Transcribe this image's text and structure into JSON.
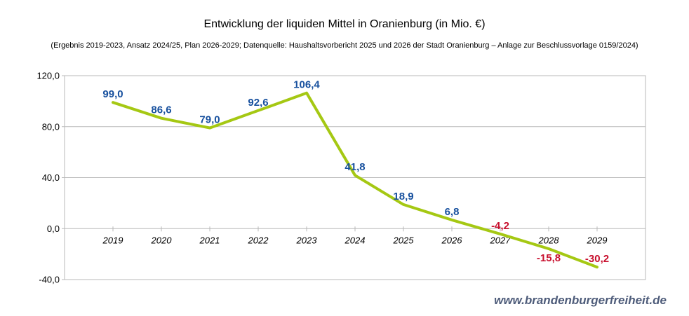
{
  "header": {
    "title": "Entwicklung der liquiden Mittel in Oranienburg (in Mio. €)",
    "subtitle": "(Ergebnis 2019-2023, Ansatz 2024/25, Plan 2026-2029; Datenquelle: Haushaltsvorbericht 2025 und 2026 der Stadt Oranienburg – Anlage zur Beschlussvorlage 0159/2024)"
  },
  "watermark": {
    "text": "www.brandenburgerfreiheit.de",
    "color": "#4E5C7A"
  },
  "chart_data": {
    "type": "line",
    "title": "Entwicklung der liquiden Mittel in Oranienburg (in Mio. €)",
    "categories": [
      "2019",
      "2020",
      "2021",
      "2022",
      "2023",
      "2024",
      "2025",
      "2026",
      "2027",
      "2028",
      "2029"
    ],
    "values": [
      99.0,
      86.6,
      79.0,
      92.6,
      106.4,
      41.8,
      18.9,
      6.8,
      -4.2,
      -15.8,
      -30.2
    ],
    "value_labels": [
      "99,0",
      "86,6",
      "79,0",
      "92,6",
      "106,4",
      "41,8",
      "18,9",
      "6,8",
      "-4,2",
      "-15,8",
      "-30,2"
    ],
    "ylim": [
      -40,
      120
    ],
    "yticks": [
      120,
      80,
      40,
      0,
      -40
    ],
    "ytick_labels": [
      "120,0",
      "80,0",
      "40,0",
      "0,0",
      "-40,0"
    ],
    "xlabel": "",
    "ylabel": "",
    "grid": true,
    "legend": "none",
    "line_color": "#A5C813",
    "positive_label_color": "#17509E",
    "negative_label_color": "#C8102E",
    "grid_color": "#B9B9B9",
    "axis_text_color": "#000000"
  }
}
